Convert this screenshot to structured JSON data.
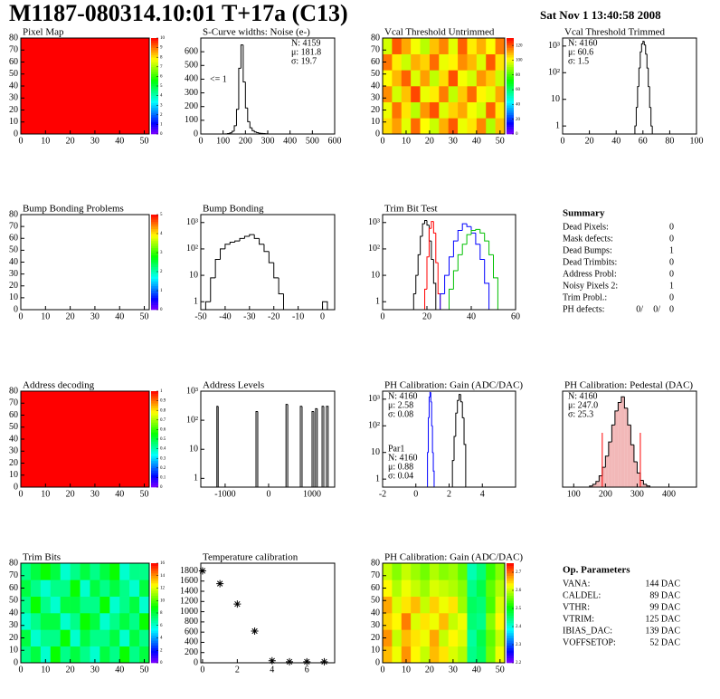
{
  "header": {
    "title": "M1187-080314.10:01 T+17a (C13)",
    "date": "Sat Nov  1 13:40:58 2008"
  },
  "chart_data": [
    {
      "type": "heatmap",
      "title": "Pixel Map",
      "xlim": [
        0,
        52
      ],
      "ylim": [
        0,
        80
      ],
      "xticks": [
        0,
        10,
        20,
        30,
        40,
        50
      ],
      "yticks": [
        0,
        10,
        20,
        30,
        40,
        50,
        60,
        70,
        80
      ],
      "zlim": [
        0,
        10
      ],
      "zticks": [
        0,
        1,
        2,
        3,
        4,
        5,
        6,
        7,
        8,
        9,
        10
      ],
      "z": [
        [
          10
        ]
      ]
    },
    {
      "type": "histogram",
      "title": "S-Curve widths: Noise (e-)",
      "xlim": [
        0,
        600
      ],
      "ylim": [
        0,
        700
      ],
      "xticks": [
        0,
        100,
        200,
        300,
        400,
        500,
        600
      ],
      "yticks": [
        0,
        100,
        200,
        300,
        400,
        500,
        600
      ],
      "color": "#000000",
      "bins": [
        110,
        120,
        130,
        140,
        150,
        160,
        170,
        180,
        190,
        200,
        210,
        220,
        230,
        240,
        250,
        260,
        270,
        280,
        290,
        300
      ],
      "counts": [
        1,
        3,
        8,
        20,
        60,
        180,
        480,
        650,
        380,
        190,
        90,
        45,
        25,
        15,
        10,
        6,
        4,
        3,
        2
      ],
      "stats_corner": "top-right",
      "stats": [
        [
          {
            "text": "N: 4159",
            "color": "#000000"
          },
          {
            "text": "μ: 181.8",
            "color": "#000000"
          },
          {
            "text": "σ: 19.7",
            "color": "#000000"
          }
        ]
      ],
      "annotations": [
        "<= 1"
      ]
    },
    {
      "type": "heatmap",
      "title": "Vcal Threshold Untrimmed",
      "xlim": [
        0,
        52
      ],
      "ylim": [
        0,
        80
      ],
      "xticks": [
        0,
        10,
        20,
        30,
        40,
        50
      ],
      "yticks": [
        0,
        10,
        20,
        30,
        40,
        50,
        60,
        70,
        80
      ],
      "zlim": [
        0,
        130
      ],
      "zticks": [
        0,
        20,
        40,
        60,
        80,
        100,
        120
      ],
      "z": [
        [
          105,
          112,
          98,
          118,
          101,
          95,
          110,
          120,
          99,
          104,
          115,
          92,
          108
        ],
        [
          99,
          117,
          104,
          93,
          113,
          121,
          97,
          106,
          111,
          100,
          96,
          119,
          103
        ],
        [
          114,
          96,
          108,
          122,
          99,
          103,
          116,
          94,
          107,
          118,
          102,
          98,
          111
        ],
        [
          101,
          109,
          119,
          97,
          112,
          94,
          105,
          121,
          100,
          96,
          113,
          107,
          95
        ],
        [
          117,
          103,
          95,
          110,
          106,
          118,
          99,
          102,
          114,
          109,
          97,
          120,
          104
        ],
        [
          96,
          120,
          111,
          100,
          93,
          108,
          115,
          98,
          119,
          103,
          110,
          101,
          116
        ]
      ]
    },
    {
      "type": "histogram",
      "title": "Vcal Threshold Trimmed",
      "log_y": true,
      "xlim": [
        0,
        100
      ],
      "ylim": [
        0.5,
        2000
      ],
      "xticks": [
        0,
        20,
        40,
        60,
        80,
        100
      ],
      "yticks": [
        1,
        10,
        {
          "value": 100,
          "label": "10²"
        },
        {
          "value": 1000,
          "label": "10³"
        }
      ],
      "color": "#000000",
      "bins": [
        54,
        55,
        56,
        57,
        58,
        59,
        60,
        61,
        62,
        63,
        64,
        65,
        66,
        67,
        68
      ],
      "counts": [
        1,
        5,
        30,
        150,
        600,
        1200,
        1500,
        1100,
        500,
        150,
        30,
        5,
        1,
        0
      ],
      "stats_corner": "top-left",
      "stats": [
        [
          {
            "text": "N: 4160",
            "color": "#000000"
          },
          {
            "text": "μ: 60.6",
            "color": "#000000"
          },
          {
            "text": "σ:  1.5",
            "color": "#000000"
          }
        ]
      ]
    },
    {
      "type": "heatmap",
      "title": "Bump Bonding Problems",
      "xlim": [
        0,
        52
      ],
      "ylim": [
        0,
        80
      ],
      "xticks": [
        0,
        10,
        20,
        30,
        40,
        50
      ],
      "yticks": [
        0,
        10,
        20,
        30,
        40,
        50,
        60,
        70,
        80
      ],
      "zlim": [
        0,
        5
      ],
      "zticks": [
        0,
        1,
        2,
        3,
        4,
        5
      ],
      "z": [
        [
          0
        ]
      ]
    },
    {
      "type": "histogram",
      "title": "Bump Bonding",
      "log_y": true,
      "xlim": [
        -50,
        5
      ],
      "ylim": [
        0.5,
        2000
      ],
      "xticks": [
        -50,
        -40,
        -30,
        -20,
        -10,
        0
      ],
      "yticks": [
        1,
        10,
        {
          "value": 100,
          "label": "10²"
        },
        {
          "value": 1000,
          "label": "10³"
        }
      ],
      "color": "#000000",
      "bins": [
        -48,
        -46,
        -44,
        -42,
        -40,
        -38,
        -36,
        -34,
        -32,
        -30,
        -28,
        -26,
        -24,
        -22,
        -20,
        -18,
        -16,
        0,
        2
      ],
      "counts": [
        1,
        8,
        40,
        100,
        150,
        180,
        200,
        250,
        300,
        350,
        250,
        150,
        80,
        30,
        8,
        2,
        0,
        1
      ]
    },
    {
      "type": "histogram",
      "title": "Trim Bit Test",
      "log_y": true,
      "xlim": [
        0,
        60
      ],
      "ylim": [
        0.5,
        2000
      ],
      "xticks": [
        0,
        20,
        40,
        60
      ],
      "yticks": [
        1,
        10,
        {
          "value": 100,
          "label": "10²"
        },
        {
          "value": 1000,
          "label": "10³"
        }
      ],
      "series": [
        {
          "color": "#000000",
          "bins": [
            14,
            15,
            16,
            17,
            18,
            19,
            20,
            21,
            22,
            23,
            24
          ],
          "counts": [
            2,
            10,
            60,
            300,
            900,
            1200,
            800,
            200,
            40,
            5
          ]
        },
        {
          "color": "#ff0000",
          "bins": [
            19,
            20,
            21,
            22,
            23,
            24,
            25,
            26
          ],
          "counts": [
            3,
            50,
            600,
            1100,
            400,
            30,
            2
          ]
        },
        {
          "color": "#0000ff",
          "bins": [
            26,
            28,
            30,
            32,
            34,
            36,
            38,
            40,
            42,
            44,
            46,
            48
          ],
          "counts": [
            2,
            10,
            50,
            200,
            500,
            900,
            700,
            400,
            150,
            40,
            5
          ]
        },
        {
          "color": "#00c000",
          "bins": [
            30,
            32,
            34,
            36,
            38,
            40,
            42,
            44,
            46,
            48,
            50,
            52
          ],
          "counts": [
            3,
            15,
            60,
            150,
            350,
            500,
            550,
            400,
            200,
            60,
            8
          ]
        }
      ]
    },
    {
      "type": "heatmap",
      "title": "Address decoding",
      "xlim": [
        0,
        52
      ],
      "ylim": [
        0,
        80
      ],
      "xticks": [
        0,
        10,
        20,
        30,
        40,
        50
      ],
      "yticks": [
        0,
        10,
        20,
        30,
        40,
        50,
        60,
        70,
        80
      ],
      "zlim": [
        0,
        1
      ],
      "zticks": [
        0,
        0.1,
        0.2,
        0.3,
        0.4,
        0.5,
        0.6,
        0.7,
        0.8,
        0.9,
        1
      ],
      "z": [
        [
          1
        ]
      ]
    },
    {
      "type": "histogram",
      "title": "Address Levels",
      "log_y": true,
      "xlim": [
        -1560,
        1520
      ],
      "ylim": [
        0.5,
        1000
      ],
      "xticks": [
        -1000,
        0,
        1000
      ],
      "yticks": [
        1,
        10,
        {
          "value": 100,
          "label": "10²"
        },
        {
          "value": 1000,
          "label": "10³"
        }
      ],
      "color": "#000000",
      "bins": [
        -1190,
        -1160,
        -290,
        -250,
        400,
        440,
        730,
        770,
        1000,
        1040,
        1080,
        1120,
        1230,
        1270,
        1330,
        1370
      ],
      "counts": [
        300,
        0,
        200,
        0,
        350,
        0,
        300,
        0,
        200,
        0,
        250,
        0,
        300,
        0,
        300
      ]
    },
    {
      "type": "histogram",
      "title": "PH Calibration: Gain (ADC/DAC)",
      "log_y": true,
      "xlim": [
        -2,
        6
      ],
      "ylim": [
        0.5,
        2000
      ],
      "xticks": [
        -2,
        0,
        2,
        4
      ],
      "yticks": [
        1,
        10,
        {
          "value": 100,
          "label": "10²"
        },
        {
          "value": 1000,
          "label": "10³"
        }
      ],
      "series": [
        {
          "color": "#000000",
          "bins": [
            2.2,
            2.3,
            2.4,
            2.5,
            2.6,
            2.7,
            2.8,
            2.9,
            3.0
          ],
          "counts": [
            5,
            40,
            300,
            900,
            1500,
            800,
            200,
            20
          ]
        },
        {
          "color": "#0000ff",
          "bins": [
            0.7,
            0.75,
            0.8,
            0.85,
            0.9,
            0.95,
            1.0,
            1.05,
            1.1
          ],
          "counts": [
            10,
            200,
            1200,
            1800,
            800,
            100,
            10,
            2
          ]
        }
      ],
      "stats_corner": "top-left",
      "stats": [
        [
          {
            "text": "N: 4160",
            "color": "#000000"
          },
          {
            "text": "μ: 2.58",
            "color": "#000000"
          },
          {
            "text": "σ: 0.08",
            "color": "#000000"
          }
        ],
        [
          {
            "text": "Par1",
            "color": "#0000ff"
          },
          {
            "text": "N: 4160",
            "color": "#0000ff"
          },
          {
            "text": "μ: 0.88",
            "color": "#0000ff"
          },
          {
            "text": "σ: 0.04",
            "color": "#0000ff"
          }
        ]
      ]
    },
    {
      "type": "histogram",
      "title": "PH Calibration: Pedestal (DAC)",
      "xlim": [
        65,
        487
      ],
      "ylim": [
        0,
        170
      ],
      "xticks": [
        100,
        200,
        300,
        400
      ],
      "yticks": [],
      "color": "#000000",
      "fill": "#f2b8b8",
      "bins": [
        150,
        160,
        170,
        180,
        190,
        200,
        210,
        220,
        230,
        240,
        250,
        260,
        270,
        280,
        290,
        300,
        310,
        320,
        330,
        340
      ],
      "counts": [
        2,
        5,
        10,
        20,
        35,
        55,
        80,
        110,
        135,
        150,
        160,
        140,
        110,
        75,
        45,
        25,
        12,
        5,
        2
      ],
      "cut_lines": [
        190,
        310
      ],
      "cut_color": "#ff0000",
      "stats_corner": "top-left",
      "stats": [
        [
          {
            "text": "N: 4160",
            "color": "#000000"
          },
          {
            "text": "μ: 247.0",
            "color": "#ff0000"
          },
          {
            "text": "σ: 25.3",
            "color": "#ff0000"
          }
        ]
      ]
    },
    {
      "type": "heatmap",
      "title": "Trim Bits",
      "xlim": [
        0,
        52
      ],
      "ylim": [
        0,
        80
      ],
      "xticks": [
        0,
        10,
        20,
        30,
        40,
        50
      ],
      "yticks": [
        0,
        10,
        20,
        30,
        40,
        50,
        60,
        70,
        80
      ],
      "zlim": [
        0,
        16
      ],
      "zticks": [
        0,
        2,
        4,
        6,
        8,
        10,
        12,
        14,
        16
      ],
      "z": [
        [
          7,
          8,
          6,
          9,
          7,
          8,
          7,
          6,
          8,
          7,
          9,
          7,
          8
        ],
        [
          8,
          6,
          7,
          7,
          9,
          6,
          8,
          7,
          7,
          8,
          6,
          8,
          7
        ],
        [
          6,
          7,
          8,
          8,
          6,
          7,
          9,
          8,
          6,
          7,
          8,
          7,
          9
        ],
        [
          7,
          9,
          7,
          6,
          8,
          8,
          7,
          7,
          9,
          6,
          7,
          8,
          6
        ],
        [
          8,
          7,
          6,
          7,
          7,
          9,
          6,
          8,
          7,
          8,
          7,
          6,
          8
        ],
        [
          7,
          8,
          9,
          8,
          6,
          7,
          8,
          7,
          8,
          9,
          6,
          7,
          7
        ]
      ]
    },
    {
      "type": "scatter",
      "title": "Temperature calibration",
      "xlim": [
        -0.1,
        7.6
      ],
      "ylim": [
        0,
        1950
      ],
      "xticks": [
        0,
        2,
        4,
        6
      ],
      "yticks": [
        0,
        200,
        400,
        600,
        800,
        1000,
        1200,
        1400,
        1600,
        1800
      ],
      "color": "#000000",
      "x": [
        0,
        1,
        2,
        3,
        4,
        5,
        6,
        7
      ],
      "values": [
        1800,
        1550,
        1150,
        620,
        40,
        20,
        20,
        20
      ]
    },
    {
      "type": "heatmap",
      "title": "PH Calibration: Gain (ADC/DAC)",
      "xlim": [
        0,
        52
      ],
      "ylim": [
        0,
        80
      ],
      "xticks": [
        0,
        10,
        20,
        30,
        40,
        50
      ],
      "yticks": [
        0,
        10,
        20,
        30,
        40,
        50,
        60,
        70,
        80
      ],
      "zlim": [
        2.2,
        2.75
      ],
      "zticks": [
        2.2,
        2.3,
        2.4,
        2.5,
        2.6,
        2.7
      ],
      "z": [
        [
          2.66,
          2.62,
          2.68,
          2.63,
          2.6,
          2.66,
          2.64,
          2.61,
          2.59,
          2.44,
          2.46,
          2.56,
          2.62
        ],
        [
          2.68,
          2.6,
          2.66,
          2.64,
          2.62,
          2.67,
          2.6,
          2.63,
          2.61,
          2.43,
          2.47,
          2.55,
          2.6
        ],
        [
          2.65,
          2.63,
          2.69,
          2.61,
          2.64,
          2.62,
          2.66,
          2.6,
          2.62,
          2.45,
          2.44,
          2.57,
          2.63
        ],
        [
          2.67,
          2.61,
          2.64,
          2.66,
          2.6,
          2.65,
          2.62,
          2.64,
          2.58,
          2.46,
          2.45,
          2.54,
          2.61
        ],
        [
          2.63,
          2.59,
          2.62,
          2.6,
          2.58,
          2.61,
          2.6,
          2.59,
          2.57,
          2.44,
          2.47,
          2.55,
          2.59
        ],
        [
          2.6,
          2.57,
          2.6,
          2.58,
          2.56,
          2.59,
          2.57,
          2.58,
          2.55,
          2.42,
          2.45,
          2.53,
          2.57
        ]
      ]
    }
  ],
  "summary": {
    "title": "Summary",
    "rows": [
      {
        "label": "Dead Pixels:",
        "value": "0"
      },
      {
        "label": "Mask defects:",
        "value": "0"
      },
      {
        "label": "Dead Bumps:",
        "value": "1"
      },
      {
        "label": "Dead Trimbits:",
        "value": "0"
      },
      {
        "label": "Address Probl:",
        "value": "0"
      },
      {
        "label": "Noisy Pixels 2:",
        "value": "1"
      },
      {
        "label": "Trim Probl.:",
        "value": "0"
      }
    ],
    "ph_defects": {
      "label": "PH defects:",
      "values": [
        "0/",
        "0/",
        "0"
      ],
      "colors": [
        "#000000",
        "#ff0000",
        "#0000ff"
      ]
    }
  },
  "op_parameters": {
    "title": "Op. Parameters",
    "rows": [
      {
        "label": "VANA:",
        "value": "144 DAC"
      },
      {
        "label": "CALDEL:",
        "value": "89 DAC"
      },
      {
        "label": "VTHR:",
        "value": "99 DAC"
      },
      {
        "label": "VTRIM:",
        "value": "125 DAC"
      },
      {
        "label": "IBIAS_DAC:",
        "value": "139 DAC"
      },
      {
        "label": "VOFFSETOP:",
        "value": "52 DAC"
      }
    ]
  }
}
